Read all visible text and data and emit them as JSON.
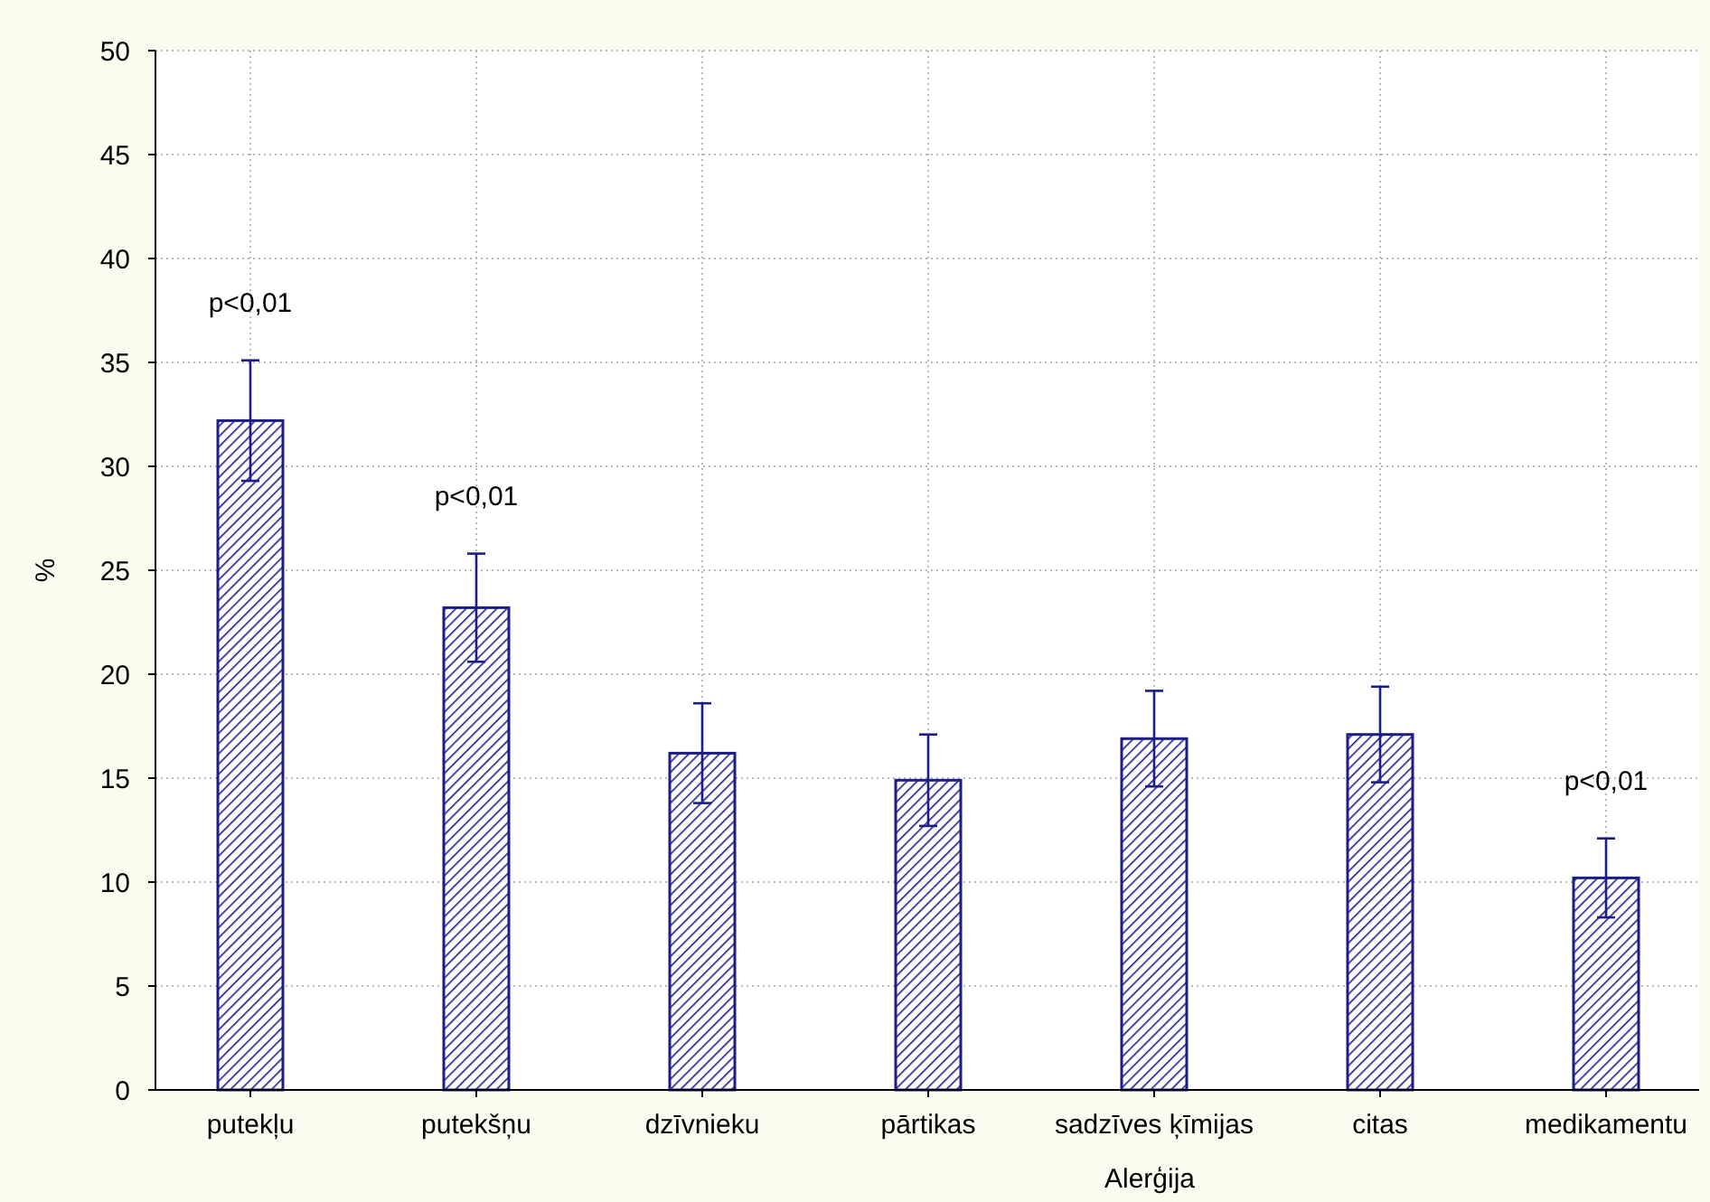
{
  "chart_data": {
    "type": "bar",
    "xlabel": "Alerģija",
    "ylabel": "%",
    "categories": [
      "putekļu",
      "putekšņu",
      "dzīvnieku",
      "pārtikas",
      "sadzīves ķīmijas",
      "citas",
      "medikamentu"
    ],
    "values": [
      32.2,
      23.2,
      16.2,
      14.9,
      16.9,
      17.1,
      10.2
    ],
    "errors": [
      2.9,
      2.6,
      2.4,
      2.2,
      2.3,
      2.3,
      1.9
    ],
    "color": "#1c1c8a",
    "ylim": [
      0,
      50
    ],
    "yticks": [
      0,
      5,
      10,
      15,
      20,
      25,
      30,
      35,
      40,
      45,
      50
    ],
    "grid": true,
    "annotations": [
      "p<0,01",
      "p<0,01",
      "p<0,01"
    ]
  }
}
